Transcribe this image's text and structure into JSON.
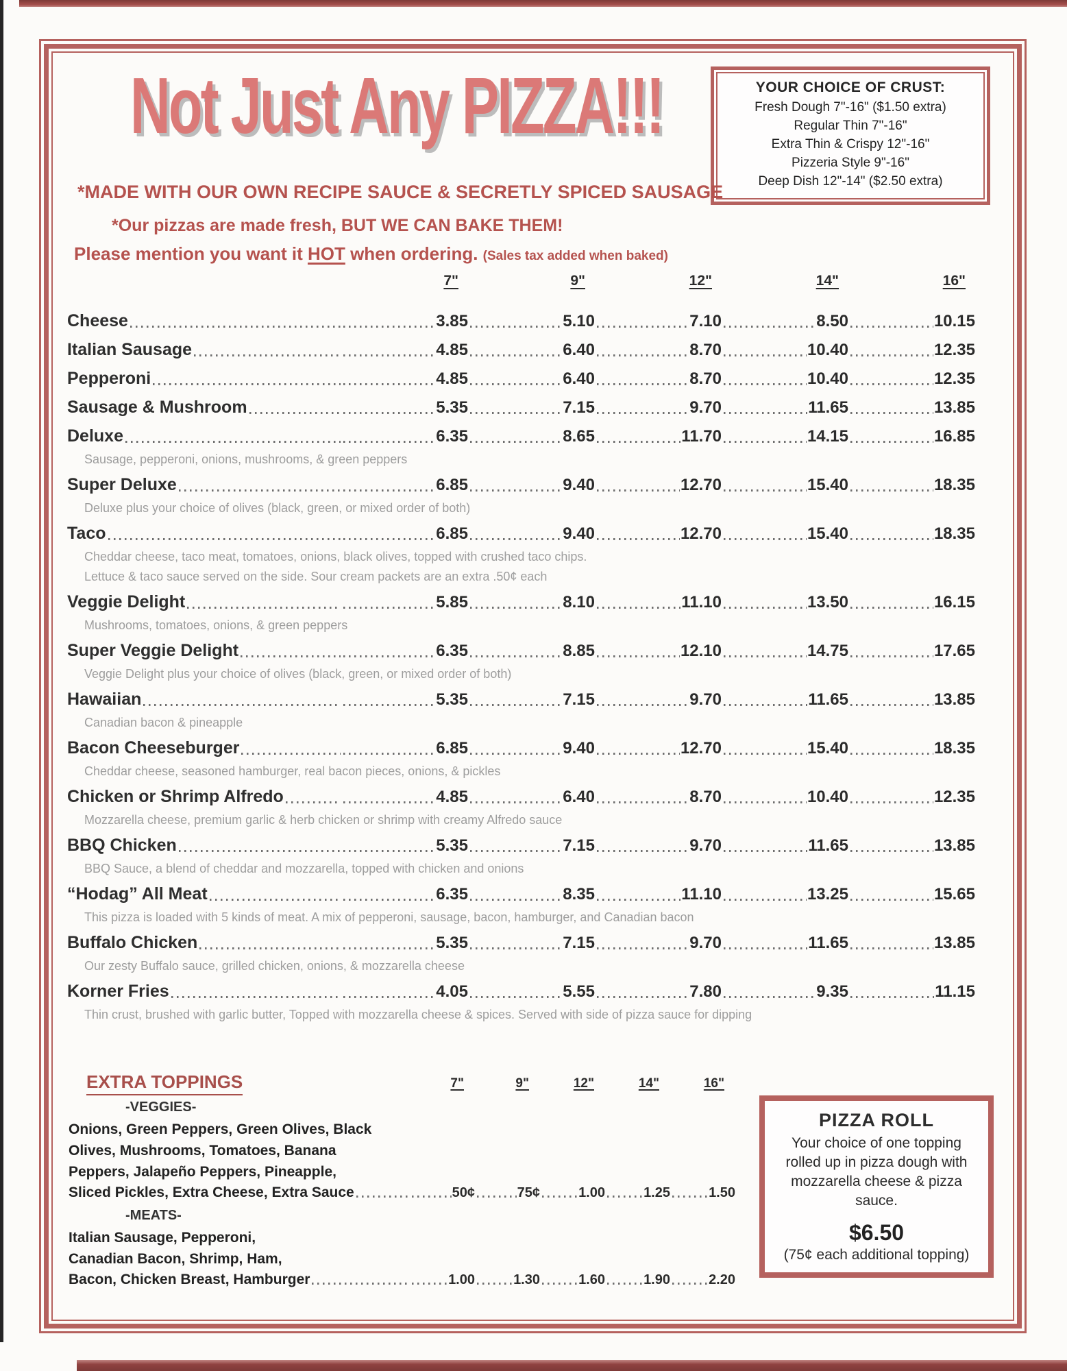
{
  "title": "Not Just Any PIZZA!!!",
  "taglines": {
    "line1": "*MADE WITH OUR OWN RECIPE SAUCE & SECRETLY SPICED SAUSAGE",
    "line2": "*Our pizzas are made fresh, BUT WE CAN BAKE THEM!",
    "line3_prefix": "Please mention you want it ",
    "line3_hot": "HOT",
    "line3_suffix": " when ordering. ",
    "line3_note": "(Sales tax added when baked)"
  },
  "crust_box": {
    "heading": "YOUR CHOICE OF CRUST:",
    "options": [
      "Fresh Dough 7\"-16\" ($1.50 extra)",
      "Regular Thin 7\"-16\"",
      "Extra Thin & Crispy 12\"-16\"",
      "Pizzeria Style 9\"-16\"",
      "Deep Dish 12\"-14\" ($2.50 extra)"
    ]
  },
  "sizes": [
    "7\"",
    "9\"",
    "12\"",
    "14\"",
    "16\""
  ],
  "menu": {
    "items": [
      {
        "name": "Cheese",
        "prices": [
          "3.85",
          "5.10",
          "7.10",
          "8.50",
          "10.15"
        ],
        "desc": []
      },
      {
        "name": "Italian Sausage",
        "prices": [
          "4.85",
          "6.40",
          "8.70",
          "10.40",
          "12.35"
        ],
        "desc": []
      },
      {
        "name": "Pepperoni",
        "prices": [
          "4.85",
          "6.40",
          "8.70",
          "10.40",
          "12.35"
        ],
        "desc": []
      },
      {
        "name": "Sausage & Mushroom",
        "prices": [
          "5.35",
          "7.15",
          "9.70",
          "11.65",
          "13.85"
        ],
        "desc": []
      },
      {
        "name": "Deluxe",
        "prices": [
          "6.35",
          "8.65",
          "11.70",
          "14.15",
          "16.85"
        ],
        "desc": [
          "Sausage, pepperoni, onions, mushrooms, & green peppers"
        ]
      },
      {
        "name": "Super Deluxe",
        "prices": [
          "6.85",
          "9.40",
          "12.70",
          "15.40",
          "18.35"
        ],
        "desc": [
          "Deluxe plus your choice of olives (black, green, or mixed order of both)"
        ]
      },
      {
        "name": "Taco",
        "prices": [
          "6.85",
          "9.40",
          "12.70",
          "15.40",
          "18.35"
        ],
        "desc": [
          "Cheddar cheese, taco meat, tomatoes, onions, black olives, topped with crushed taco chips.",
          "Lettuce & taco sauce served on the side. Sour cream packets are an extra .50¢ each"
        ]
      },
      {
        "name": "Veggie Delight",
        "prices": [
          "5.85",
          "8.10",
          "11.10",
          "13.50",
          "16.15"
        ],
        "desc": [
          "Mushrooms, tomatoes, onions, & green peppers"
        ]
      },
      {
        "name": "Super Veggie Delight",
        "prices": [
          "6.35",
          "8.85",
          "12.10",
          "14.75",
          "17.65"
        ],
        "desc": [
          "Veggie Delight plus your choice of olives (black, green, or mixed order of both)"
        ]
      },
      {
        "name": "Hawaiian",
        "prices": [
          "5.35",
          "7.15",
          "9.70",
          "11.65",
          "13.85"
        ],
        "desc": [
          "Canadian bacon & pineapple"
        ]
      },
      {
        "name": "Bacon Cheeseburger",
        "prices": [
          "6.85",
          "9.40",
          "12.70",
          "15.40",
          "18.35"
        ],
        "desc": [
          "Cheddar cheese, seasoned hamburger, real bacon pieces, onions, & pickles"
        ]
      },
      {
        "name": "Chicken or Shrimp Alfredo",
        "prices": [
          "4.85",
          "6.40",
          "8.70",
          "10.40",
          "12.35"
        ],
        "desc": [
          "Mozzarella cheese, premium garlic & herb chicken or shrimp with creamy Alfredo sauce"
        ]
      },
      {
        "name": "BBQ Chicken",
        "prices": [
          "5.35",
          "7.15",
          "9.70",
          "11.65",
          "13.85"
        ],
        "desc": [
          "BBQ Sauce, a blend of cheddar and mozzarella, topped with chicken and onions"
        ]
      },
      {
        "name": "“Hodag” All Meat",
        "prices": [
          "6.35",
          "8.35",
          "11.10",
          "13.25",
          "15.65"
        ],
        "desc": [
          "This pizza is loaded with 5 kinds of meat. A mix of pepperoni, sausage, bacon, hamburger, and Canadian bacon"
        ]
      },
      {
        "name": "Buffalo Chicken",
        "prices": [
          "5.35",
          "7.15",
          "9.70",
          "11.65",
          "13.85"
        ],
        "desc": [
          "Our zesty Buffalo sauce, grilled chicken, onions, & mozzarella cheese"
        ]
      },
      {
        "name": "Korner Fries",
        "prices": [
          "4.05",
          "5.55",
          "7.80",
          "9.35",
          "11.15"
        ],
        "desc": [
          "Thin crust, brushed with garlic butter, Topped with mozzarella cheese & spices. Served with side of pizza sauce for dipping"
        ]
      }
    ]
  },
  "extra_toppings": {
    "heading": "EXTRA TOPPINGS",
    "veggies_label": "-VEGGIES-",
    "veggies_lines": [
      "Onions, Green Peppers, Green Olives, Black",
      "Olives, Mushrooms, Tomatoes, Banana",
      "Peppers, Jalapeño Peppers, Pineapple,"
    ],
    "veggies_price_line": "Sliced Pickles, Extra Cheese, Extra Sauce",
    "veggies_prices": [
      "50¢",
      "75¢",
      "1.00",
      "1.25",
      "1.50"
    ],
    "meats_label": "-MEATS-",
    "meats_lines": [
      "Italian Sausage, Pepperoni,",
      "Canadian Bacon, Shrimp, Ham,"
    ],
    "meats_price_line": "Bacon, Chicken Breast, Hamburger",
    "meats_prices": [
      "1.00",
      "1.30",
      "1.60",
      "1.90",
      "2.20"
    ]
  },
  "pizza_roll": {
    "heading": "PIZZA ROLL",
    "desc": "Your choice of one topping rolled up in pizza dough with mozzarella cheese & pizza sauce.",
    "price": "$6.50",
    "note": "(75¢ each additional topping)"
  },
  "colors": {
    "frame_red": "#b5615e",
    "title_red": "#db7977",
    "tagline_red": "#b5524e",
    "heading_red": "#a84f4b",
    "text_dark": "#2e2e2e",
    "desc_gray": "#9d9d9d"
  }
}
